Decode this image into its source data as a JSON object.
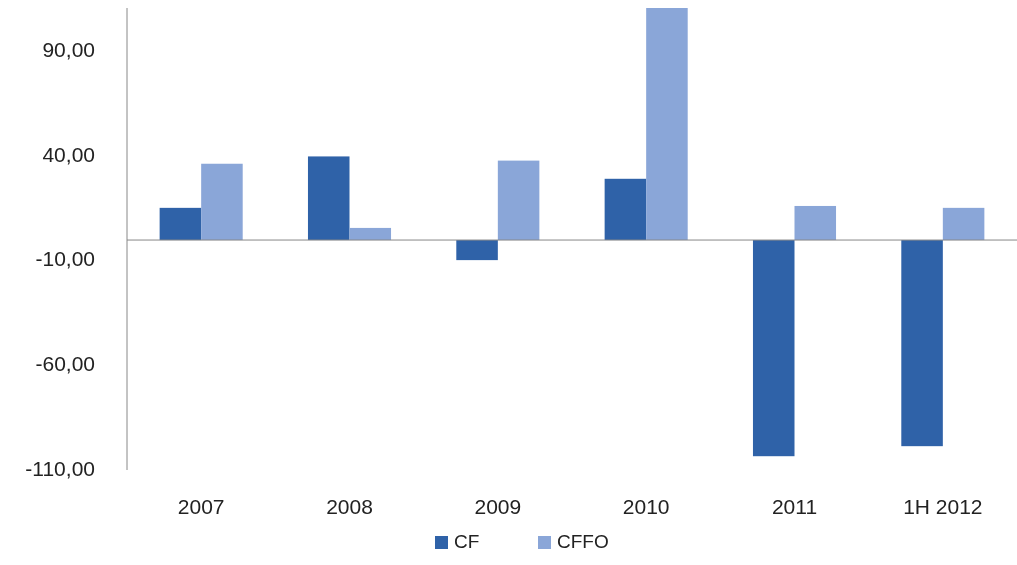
{
  "chart_data": {
    "type": "bar",
    "categories": [
      "2007",
      "2008",
      "2009",
      "2010",
      "2011",
      "1H 2012"
    ],
    "series": [
      {
        "name": "CF",
        "color": "#2f62a8",
        "values": [
          15.4,
          40,
          -9.6,
          29.3,
          -103.4,
          -98.6
        ]
      },
      {
        "name": "CFFO",
        "color": "#8aa6d8",
        "values": [
          36.5,
          5.8,
          38,
          111,
          16.3,
          15.4
        ]
      }
    ],
    "ylim": [
      -110,
      111
    ],
    "yticks": [
      {
        "value": -110,
        "label": "-110,00"
      },
      {
        "value": -60,
        "label": "-60,00"
      },
      {
        "value": -10,
        "label": "-10,00"
      },
      {
        "value": 40,
        "label": "40,00"
      },
      {
        "value": 90,
        "label": "90,00"
      }
    ],
    "grid": false,
    "legend": "bottom"
  }
}
